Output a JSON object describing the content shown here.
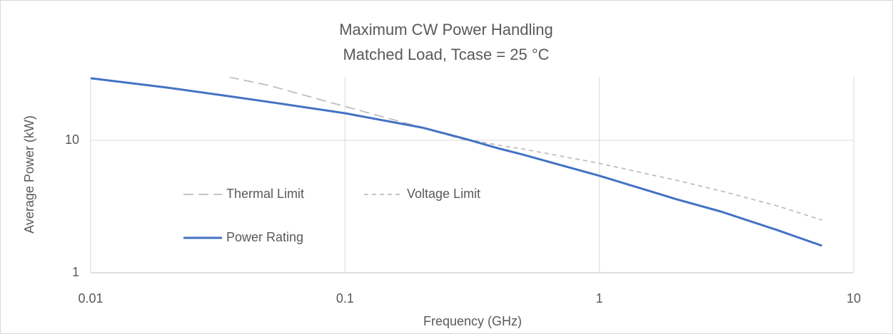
{
  "chart_data": {
    "type": "line",
    "title": "Maximum CW Power Handling",
    "subtitle": "Matched Load, Tcase = 25 °C",
    "x_label": "Frequency (GHz)",
    "y_label": "Average Power (kW)",
    "x": [
      0.01,
      0.02,
      0.035,
      0.05,
      0.1,
      0.2,
      0.3,
      0.4,
      0.5,
      1,
      2,
      3,
      5,
      7.5
    ],
    "series": [
      {
        "name": "Thermal Limit",
        "color": "#bfbfbf",
        "dash": "long",
        "values": [
          null,
          null,
          30,
          26,
          18,
          12.5,
          10,
          null,
          null,
          null,
          null,
          null,
          null,
          null
        ]
      },
      {
        "name": "Voltage Limit",
        "color": "#bfbfbf",
        "dash": "short",
        "values": [
          null,
          null,
          null,
          null,
          null,
          12.5,
          10.2,
          9.2,
          8.6,
          6.7,
          5,
          4.15,
          3.2,
          2.5
        ]
      },
      {
        "name": "Power Rating",
        "color": "#4472c4",
        "dash": "solid",
        "values": [
          29.4,
          25,
          21.5,
          19.5,
          16,
          12.5,
          10.2,
          8.7,
          7.8,
          5.4,
          3.6,
          2.9,
          2.1,
          1.6
        ]
      }
    ],
    "x_log": true,
    "y_log": true,
    "xlim": [
      0.01,
      10
    ],
    "xticks": [
      0.01,
      0.1,
      1,
      10
    ],
    "ylim": [
      1,
      30
    ],
    "yticks": [
      1,
      10
    ],
    "grid": true,
    "legend": "left"
  }
}
